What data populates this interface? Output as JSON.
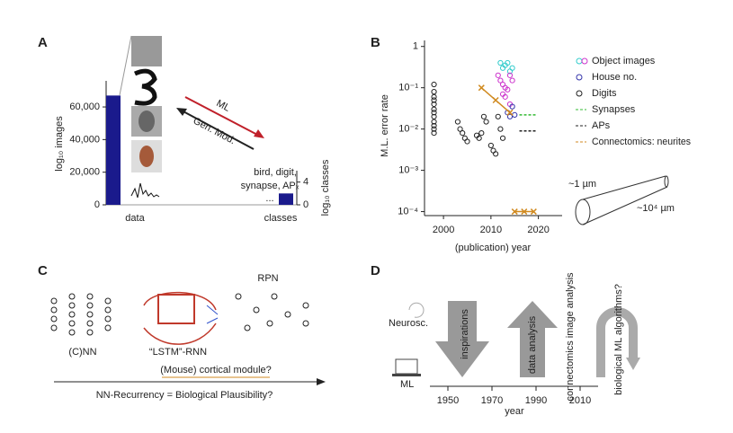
{
  "panel_labels": [
    "A",
    "B",
    "C",
    "D"
  ],
  "chart_data": [
    {
      "type": "bar",
      "ylabel": "log₁₀ images",
      "y2label": "log₁₀ classes",
      "categories": [
        "data",
        "classes"
      ],
      "series": [
        {
          "color": "#1a1a8c",
          "values": [
            67000,
            null
          ]
        },
        {
          "color": "#1a1a8c",
          "axis": "y2",
          "values": [
            null,
            2
          ]
        }
      ],
      "ylim": [
        0,
        76000
      ],
      "yticks": [
        0,
        {
          "value": 20000,
          "label": "20,000"
        },
        {
          "value": 40000,
          "label": "40,000"
        },
        {
          "value": 60000,
          "label": "60,000"
        }
      ],
      "y2lim": [
        0,
        6
      ],
      "y2ticks": [
        0,
        4
      ],
      "annotations": [
        "ML",
        "Gen. Mod.",
        "bird, digit,",
        "synapse, APₓ",
        "..."
      ]
    },
    {
      "type": "scatter",
      "xlabel": "(publication) year",
      "ylabel": "M.L. error rate",
      "xlim": [
        1996,
        2025
      ],
      "xticks": [
        2000,
        2010,
        2020
      ],
      "ylim": [
        8e-05,
        1.4
      ],
      "log_y": true,
      "yticks": [
        {
          "value": 0.0001,
          "label": "10⁻⁴"
        },
        {
          "value": 0.001,
          "label": "10⁻³"
        },
        {
          "value": 0.01,
          "label": "10⁻²"
        },
        {
          "value": 0.1,
          "label": "10⁻¹"
        },
        1
      ],
      "series": [
        {
          "name": "Object images",
          "marker": "circle",
          "colors": [
            "#33cccc",
            "#33cccc",
            "#33cccc",
            "#33cccc",
            "#33cccc",
            "#33cccc",
            "#cc33cc",
            "#cc33cc",
            "#cc33cc",
            "#cc33cc",
            "#cc33cc",
            "#cc33cc",
            "#cc33cc",
            "#cc33cc",
            "#cc33cc",
            "#cc33cc"
          ],
          "x": [
            2012,
            2012.5,
            2013,
            2013.5,
            2014,
            2014.5,
            2011.5,
            2012,
            2012.5,
            2013,
            2013.5,
            2014,
            2014.5,
            2013,
            2014,
            2012.5
          ],
          "values": [
            0.4,
            0.3,
            0.35,
            0.4,
            0.25,
            0.3,
            0.2,
            0.15,
            0.12,
            0.1,
            0.09,
            0.2,
            0.15,
            0.06,
            0.04,
            0.07
          ]
        },
        {
          "name": "House no.",
          "marker": "circle",
          "color": "#3333aa",
          "x": [
            2013.5,
            2014,
            2014.5,
            2015
          ],
          "values": [
            0.025,
            0.02,
            0.035,
            0.022
          ]
        },
        {
          "name": "Digits",
          "marker": "circle",
          "color": "#222222",
          "x": [
            1998,
            1998,
            1998,
            1998,
            1998,
            1998,
            1998,
            1998,
            1998,
            1998,
            1998,
            1998,
            2003,
            2003.5,
            2004,
            2004.5,
            2005,
            2007,
            2007.5,
            2008,
            2008.5,
            2009,
            2010,
            2010.5,
            2011,
            2011.5,
            2012,
            2012.5
          ],
          "values": [
            0.12,
            0.08,
            0.06,
            0.05,
            0.04,
            0.03,
            0.025,
            0.02,
            0.015,
            0.012,
            0.01,
            0.008,
            0.015,
            0.01,
            0.008,
            0.006,
            0.005,
            0.007,
            0.006,
            0.008,
            0.02,
            0.015,
            0.004,
            0.003,
            0.0025,
            0.02,
            0.01,
            0.006
          ]
        },
        {
          "name": "Synapses",
          "marker": "dash",
          "color": "#33bb33",
          "x": [
            2016,
            2019.5
          ],
          "values": [
            0.022,
            0.022
          ]
        },
        {
          "name": "APs",
          "marker": "dash",
          "color": "#222222",
          "x": [
            2016,
            2019.5
          ],
          "values": [
            0.009,
            0.009
          ]
        },
        {
          "name": "Connectomics: neurites",
          "marker": "cross",
          "color": "#d08a20",
          "x": [
            2008,
            2011,
            2014,
            null,
            2015,
            2017,
            2019
          ],
          "values": [
            0.1,
            0.05,
            0.025,
            null,
            0.0001,
            0.0001,
            0.0001
          ]
        }
      ],
      "annotations": [
        "~1 µm",
        "~10⁴ µm"
      ]
    }
  ],
  "panel_c": {
    "networks": [
      "(C)NN",
      "“LSTM”-RNN",
      "RPN"
    ],
    "question": "(Mouse) cortical module?",
    "axis_label": "NN-Recurrency = Biological Plausibility?"
  },
  "panel_d": {
    "rows": [
      "Neurosc.",
      "ML"
    ],
    "arrows": [
      "inspirations",
      "data analysis",
      "connectomics image analysis",
      "biological ML algorithms?"
    ],
    "timeline_ticks": [
      1950,
      1970,
      1990,
      2010
    ],
    "timeline_label": "year"
  }
}
